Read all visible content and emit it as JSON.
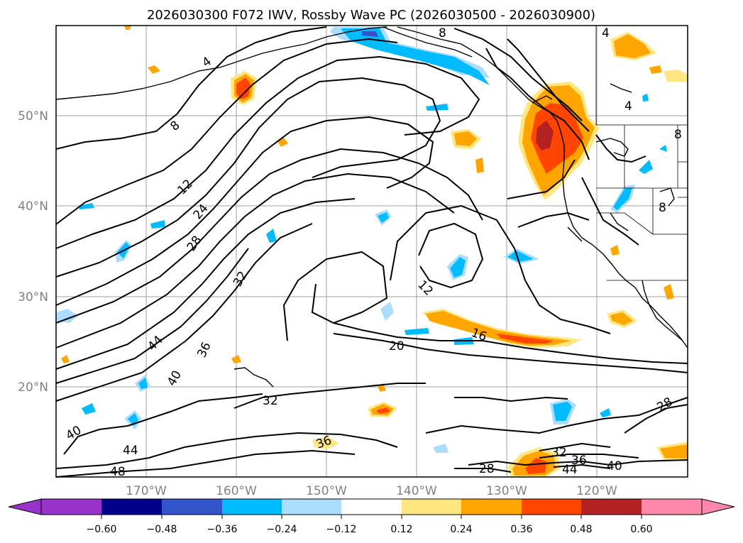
{
  "title": "2026030300 F072 IWV, Rossby Wave PC (2026030500 - 2026030900)",
  "map": {
    "lat_labels": [
      "50°N",
      "40°N",
      "30°N",
      "20°N"
    ],
    "lon_labels": [
      "170°W",
      "160°W",
      "150°W",
      "140°W",
      "130°W",
      "120°W"
    ],
    "grid": true,
    "contour_levels_shown": [
      "4",
      "8",
      "12",
      "16",
      "20",
      "24",
      "28",
      "32",
      "36",
      "40",
      "44",
      "48"
    ]
  },
  "colorbar": {
    "ticks": [
      "−0.60",
      "−0.48",
      "−0.36",
      "−0.24",
      "−0.12",
      "0.12",
      "0.24",
      "0.36",
      "0.48",
      "0.60"
    ],
    "colors": [
      "#9933cc",
      "#00008b",
      "#3355cc",
      "#00bbff",
      "#aaddff",
      "#ffffff",
      "#ffe680",
      "#ffa500",
      "#ff4500",
      "#b22222",
      "#ff88aa"
    ],
    "extend": "both"
  },
  "contour_labels": [
    {
      "text": "4",
      "id": "c4a"
    },
    {
      "text": "8",
      "id": "c8a"
    },
    {
      "text": "12",
      "id": "c12a"
    },
    {
      "text": "24",
      "id": "c24a"
    },
    {
      "text": "28",
      "id": "c28a"
    },
    {
      "text": "32",
      "id": "c32a"
    },
    {
      "text": "44",
      "id": "c44a"
    },
    {
      "text": "36",
      "id": "c36a"
    },
    {
      "text": "40",
      "id": "c40a"
    },
    {
      "text": "40",
      "id": "c40b"
    },
    {
      "text": "44",
      "id": "c44b"
    },
    {
      "text": "48",
      "id": "c48a"
    },
    {
      "text": "32",
      "id": "c32b"
    },
    {
      "text": "36",
      "id": "c36b"
    },
    {
      "text": "20",
      "id": "c20a"
    },
    {
      "text": "16",
      "id": "c16a"
    },
    {
      "text": "12",
      "id": "c12b"
    },
    {
      "text": "28",
      "id": "c28b"
    },
    {
      "text": "32",
      "id": "c32c"
    },
    {
      "text": "36",
      "id": "c36c"
    },
    {
      "text": "44",
      "id": "c44c"
    },
    {
      "text": "40",
      "id": "c40c"
    },
    {
      "text": "28",
      "id": "c28c"
    },
    {
      "text": "4",
      "id": "c4b"
    },
    {
      "text": "8",
      "id": "c8b"
    },
    {
      "text": "8",
      "id": "c8c"
    },
    {
      "text": "8",
      "id": "c8d"
    },
    {
      "text": "4",
      "id": "c4c"
    }
  ]
}
